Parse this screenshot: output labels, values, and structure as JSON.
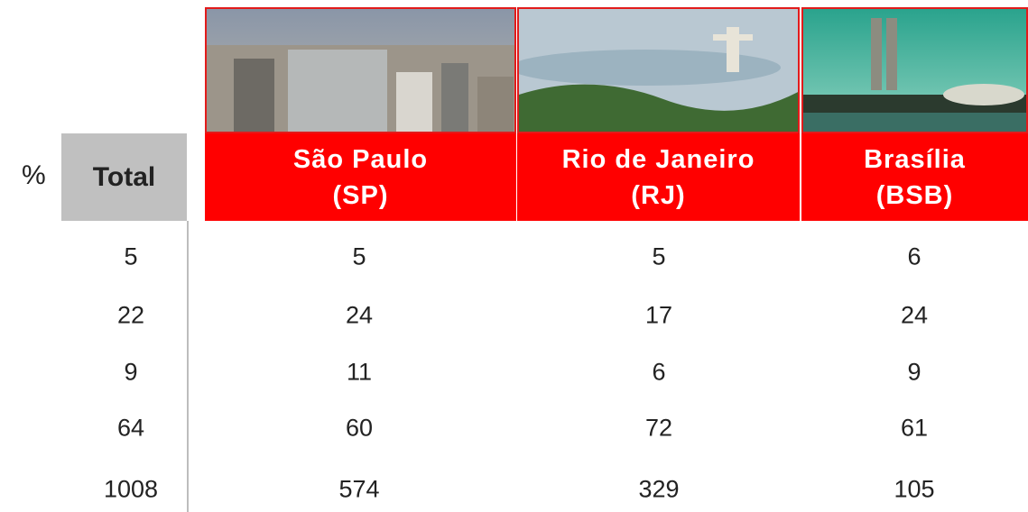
{
  "table": {
    "corner": "%",
    "header": [
      {
        "name": "Total"
      },
      {
        "name": "São Paulo",
        "code": "(SP)"
      },
      {
        "name": "Rio de Janeiro",
        "code": "(RJ)"
      },
      {
        "name": "Brasília",
        "code": "(BSB)"
      }
    ],
    "rows": [
      [
        5,
        5,
        5,
        6
      ],
      [
        22,
        24,
        17,
        24
      ],
      [
        9,
        11,
        6,
        9
      ],
      [
        64,
        60,
        72,
        61
      ],
      [
        1008,
        574,
        329,
        105
      ]
    ]
  }
}
